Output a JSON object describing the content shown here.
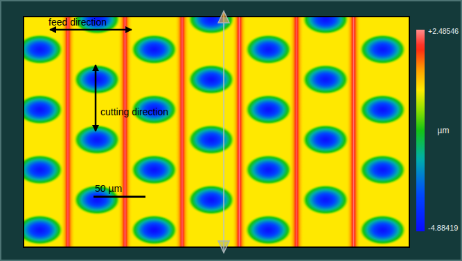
{
  "chart_data": {
    "type": "surface_map",
    "xlim": [
      0,
      370
    ],
    "ylim": [
      0,
      221
    ],
    "tick_labels": false,
    "base_level": 0.3,
    "dimple_width": 46,
    "dimple_height": 30,
    "ridge_width": 14,
    "annotations": [
      "feed direction",
      "cutting direction"
    ],
    "scale_bar": {
      "value": 50,
      "label": "50 µm"
    },
    "colorbar": {
      "range": [
        -4.88419,
        2.48546
      ],
      "label": "µm",
      "ticks": [
        {
          "value": 2.48546,
          "label": "+2.48546"
        },
        {
          "value": -4.88419,
          "label": "-4.88419"
        }
      ]
    },
    "ridges": [
      {
        "x": 42,
        "height": 2.3
      },
      {
        "x": 97,
        "height": 2.35
      },
      {
        "x": 152,
        "height": 2.3
      },
      {
        "x": 207,
        "height": 2.4
      },
      {
        "x": 262,
        "height": 2.3
      },
      {
        "x": 317,
        "height": 2.35
      }
    ],
    "dimples": [
      {
        "x": 15,
        "y": 31,
        "depth": -4.6
      },
      {
        "x": 15,
        "y": 89,
        "depth": -4.7
      },
      {
        "x": 15,
        "y": 147,
        "depth": -4.6
      },
      {
        "x": 15,
        "y": 205,
        "depth": -4.7
      },
      {
        "x": 70,
        "y": 2,
        "depth": -4.6
      },
      {
        "x": 70,
        "y": 60,
        "depth": -4.7
      },
      {
        "x": 70,
        "y": 118,
        "depth": -4.6
      },
      {
        "x": 70,
        "y": 176,
        "depth": -4.7
      },
      {
        "x": 125,
        "y": 31,
        "depth": -4.7
      },
      {
        "x": 125,
        "y": 89,
        "depth": -4.6
      },
      {
        "x": 125,
        "y": 147,
        "depth": -4.7
      },
      {
        "x": 125,
        "y": 205,
        "depth": -4.88419
      },
      {
        "x": 180,
        "y": 2,
        "depth": -4.6
      },
      {
        "x": 180,
        "y": 60,
        "depth": -4.7
      },
      {
        "x": 180,
        "y": 118,
        "depth": -4.6
      },
      {
        "x": 180,
        "y": 176,
        "depth": -4.7
      },
      {
        "x": 235,
        "y": 31,
        "depth": -4.6
      },
      {
        "x": 235,
        "y": 89,
        "depth": -4.7
      },
      {
        "x": 235,
        "y": 147,
        "depth": -4.6
      },
      {
        "x": 235,
        "y": 205,
        "depth": -4.7
      },
      {
        "x": 290,
        "y": 2,
        "depth": -4.7
      },
      {
        "x": 290,
        "y": 60,
        "depth": -4.6
      },
      {
        "x": 290,
        "y": 118,
        "depth": -4.7
      },
      {
        "x": 290,
        "y": 176,
        "depth": -4.6
      },
      {
        "x": 345,
        "y": 31,
        "depth": -4.6
      },
      {
        "x": 345,
        "y": 89,
        "depth": -4.7
      },
      {
        "x": 345,
        "y": 147,
        "depth": -4.6
      },
      {
        "x": 345,
        "y": 205,
        "depth": -4.7
      }
    ]
  }
}
